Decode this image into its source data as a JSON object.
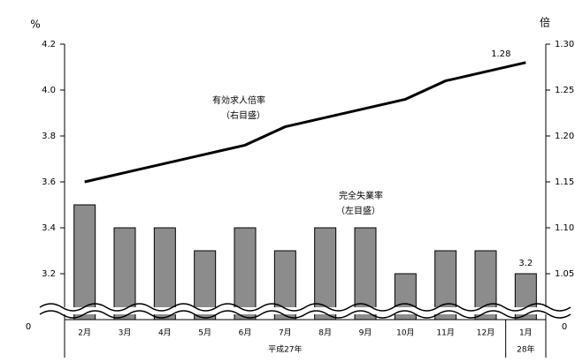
{
  "chart_data": {
    "type": "bar-line",
    "y_unit": "%",
    "y2_unit": "倍",
    "categories": [
      "2月",
      "3月",
      "4月",
      "5月",
      "6月",
      "7月",
      "8月",
      "9月",
      "10月",
      "11月",
      "12月",
      "1月"
    ],
    "x_groups": [
      {
        "label": "平成27年",
        "count": 11
      },
      {
        "label": "28年",
        "count": 1
      }
    ],
    "series": [
      {
        "name": "完全失業率",
        "note": "（左目盛）",
        "type": "bar",
        "axis": "y",
        "color": "#8c8c8c",
        "values": [
          3.5,
          3.4,
          3.4,
          3.3,
          3.4,
          3.3,
          3.4,
          3.4,
          3.2,
          3.3,
          3.3,
          3.2
        ]
      },
      {
        "name": "有効求人倍率",
        "note": "（右目盛）",
        "type": "line",
        "axis": "y2",
        "color": "#000000",
        "values": [
          1.15,
          1.16,
          1.17,
          1.18,
          1.19,
          1.21,
          1.22,
          1.23,
          1.24,
          1.26,
          1.27,
          1.28
        ]
      }
    ],
    "data_labels": "last",
    "ylim": [
      3.0,
      4.2
    ],
    "yticks": [
      3.2,
      3.4,
      3.6,
      3.8,
      {
        "value": 4.0,
        "label": "4.0"
      },
      4.2
    ],
    "y_break_label": "0",
    "y2lim": [
      1.0,
      1.3
    ],
    "y2ticks": [
      1.05,
      {
        "value": 1.1,
        "label": "1.10"
      },
      1.15,
      {
        "value": 1.2,
        "label": "1.20"
      },
      1.25,
      {
        "value": 1.3,
        "label": "1.30"
      }
    ],
    "y2_break_label": "0"
  }
}
